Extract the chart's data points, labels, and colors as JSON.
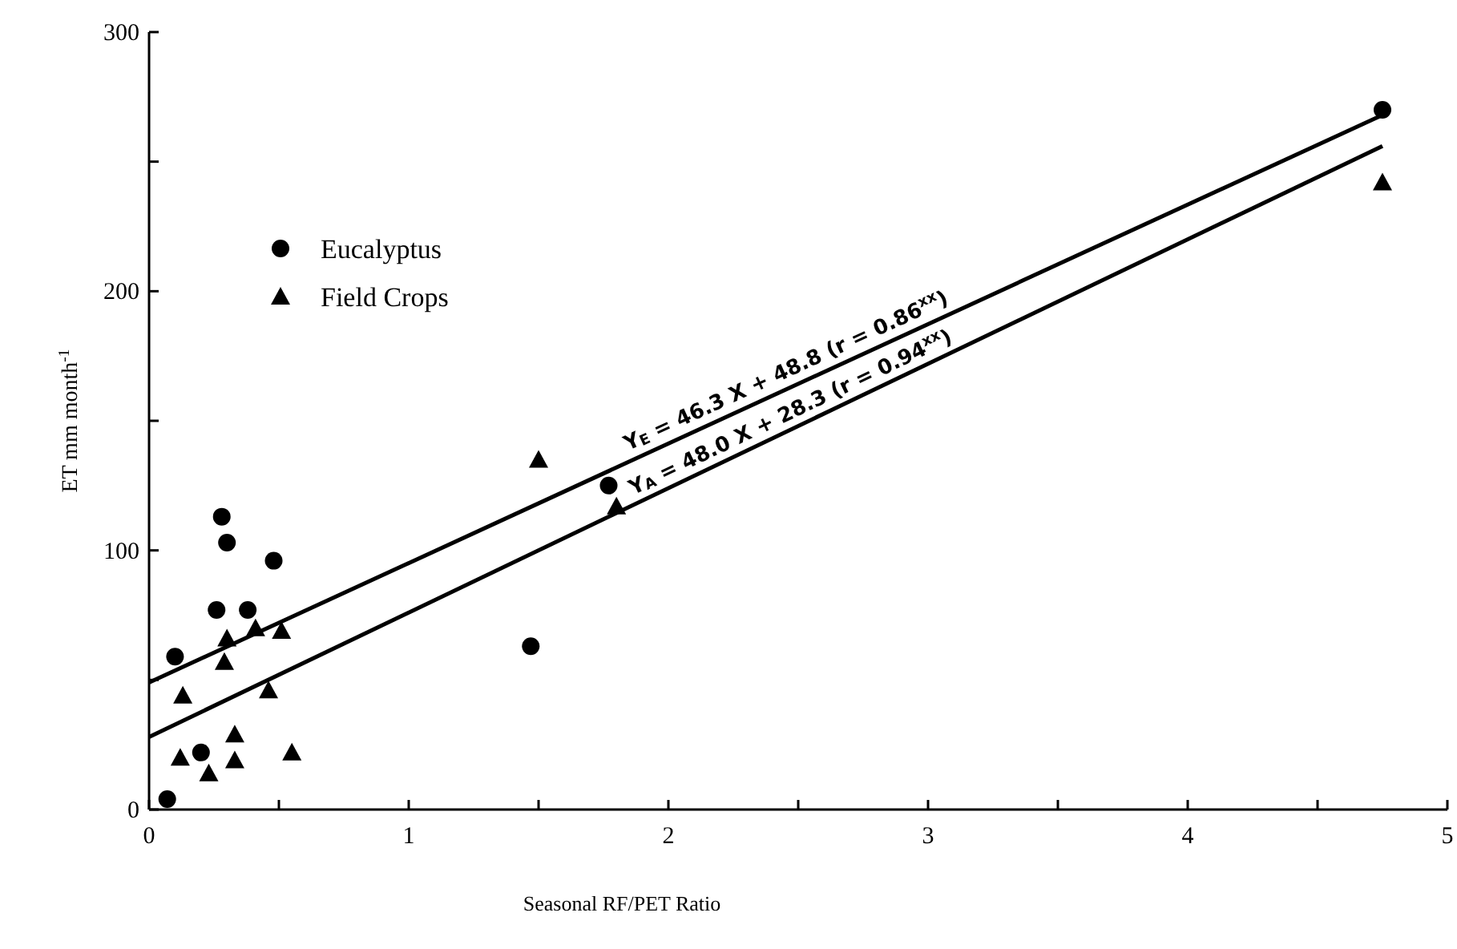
{
  "chart_data": {
    "type": "scatter",
    "xlabel": "Seasonal RF/PET Ratio",
    "ylabel": "ET mm month$^{-1}$",
    "xlim": [
      0,
      5
    ],
    "ylim": [
      0,
      300
    ],
    "xticks": [
      0,
      {
        "value": 0.5,
        "label": null
      },
      1,
      {
        "value": 1.5,
        "label": null
      },
      2,
      {
        "value": 2.5,
        "label": null
      },
      3,
      {
        "value": 3.5,
        "label": null
      },
      4,
      {
        "value": 4.5,
        "label": null
      },
      5
    ],
    "yticks": [
      0,
      {
        "value": 50,
        "label": null
      },
      100,
      {
        "value": 150,
        "label": null
      },
      200,
      {
        "value": 250,
        "label": null
      },
      300
    ],
    "grid": false,
    "legend": "top left",
    "series": [
      {
        "name": "Eucalyptus",
        "color": "#000000",
        "marker": "circle",
        "x": [
          0.28,
          0.3,
          0.48,
          0.26,
          0.38,
          0.1,
          0.2,
          0.07,
          1.47,
          1.77,
          4.75
        ],
        "values": [
          113,
          103,
          96,
          77,
          77,
          59,
          22,
          4,
          63,
          125,
          270
        ]
      },
      {
        "name": "Field Crops",
        "color": "#000000",
        "marker": "triangle",
        "x": [
          0.41,
          0.3,
          0.51,
          0.29,
          0.13,
          0.46,
          0.33,
          0.12,
          0.33,
          0.23,
          0.55,
          1.5,
          1.8,
          4.75
        ],
        "values": [
          70,
          66,
          69,
          57,
          44,
          46,
          29,
          20,
          19,
          14,
          22,
          135,
          117,
          242
        ]
      },
      {
        "type": "line",
        "color": "#000000",
        "marker": "none",
        "line_style": "solid",
        "x": [
          0,
          4.75
        ],
        "values": [
          49,
          268
        ]
      },
      {
        "type": "line",
        "color": "#000000",
        "marker": "none",
        "line_style": "solid",
        "x": [
          0,
          4.75
        ],
        "values": [
          28,
          256
        ]
      }
    ],
    "annotations": [
      {
        "text": "Y$_{E}$ = 46.3 X + 48.8 (r = 0.86$^{xx}$)",
        "x": 1.86,
        "y": 135
      },
      {
        "text": "Y$_{A}$ = 48.0 X + 28.3 (r = 0.94$^{xx}$)",
        "x": 1.88,
        "y": 118
      }
    ]
  }
}
